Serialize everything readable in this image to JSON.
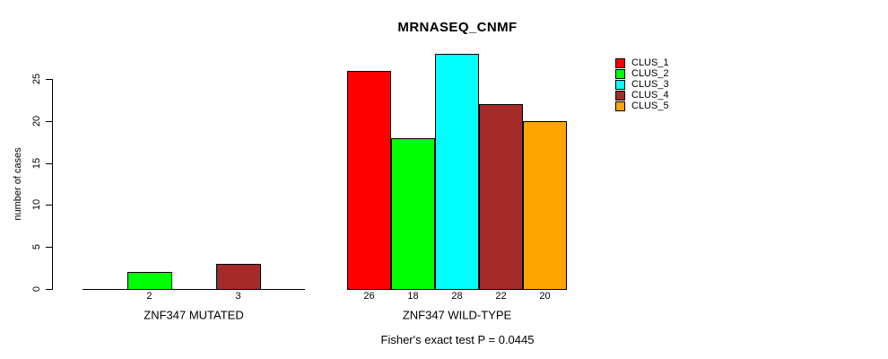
{
  "chart_data": {
    "type": "bar",
    "title": "MRNASEQ_CNMF",
    "ylabel": "number of cases",
    "xlabel": "",
    "ylim": [
      0,
      25
    ],
    "yticks": [
      0,
      5,
      10,
      15,
      20,
      25
    ],
    "grid": false,
    "categories": [
      "ZNF347 MUTATED",
      "ZNF347 WILD-TYPE"
    ],
    "series": [
      {
        "name": "CLUS_1",
        "color": "#FF0000",
        "values": [
          0,
          26
        ]
      },
      {
        "name": "CLUS_2",
        "color": "#00FF00",
        "values": [
          2,
          18
        ]
      },
      {
        "name": "CLUS_3",
        "color": "#00FFFF",
        "values": [
          0,
          28
        ]
      },
      {
        "name": "CLUS_4",
        "color": "#A52A2A",
        "values": [
          3,
          22
        ]
      },
      {
        "name": "CLUS_5",
        "color": "#FFA500",
        "values": [
          0,
          20
        ]
      }
    ],
    "bar_labels": [
      [
        "",
        "2",
        "",
        "3",
        ""
      ],
      [
        "26",
        "18",
        "28",
        "22",
        "20"
      ]
    ],
    "legend": {
      "position": "right",
      "entries": [
        "CLUS_1",
        "CLUS_2",
        "CLUS_3",
        "CLUS_4",
        "CLUS_5"
      ]
    },
    "caption": "Fisher's exact test P = 0.0445",
    "bar_border_color": "#000000",
    "text_color": "#000000"
  }
}
